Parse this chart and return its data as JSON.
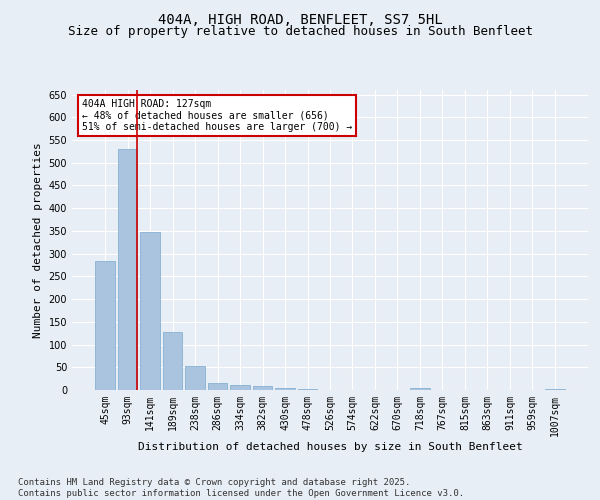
{
  "title_line1": "404A, HIGH ROAD, BENFLEET, SS7 5HL",
  "title_line2": "Size of property relative to detached houses in South Benfleet",
  "xlabel": "Distribution of detached houses by size in South Benfleet",
  "ylabel": "Number of detached properties",
  "categories": [
    "45sqm",
    "93sqm",
    "141sqm",
    "189sqm",
    "238sqm",
    "286sqm",
    "334sqm",
    "382sqm",
    "430sqm",
    "478sqm",
    "526sqm",
    "574sqm",
    "622sqm",
    "670sqm",
    "718sqm",
    "767sqm",
    "815sqm",
    "863sqm",
    "911sqm",
    "959sqm",
    "1007sqm"
  ],
  "values": [
    283,
    530,
    348,
    127,
    52,
    15,
    10,
    8,
    5,
    3,
    0,
    0,
    0,
    0,
    5,
    0,
    0,
    0,
    0,
    0,
    3
  ],
  "bar_color": "#aac4e0",
  "bar_edgecolor": "#7aaad0",
  "vline_color": "#cc0000",
  "vline_x_index": 1.425,
  "annotation_text": "404A HIGH ROAD: 127sqm\n← 48% of detached houses are smaller (656)\n51% of semi-detached houses are larger (700) →",
  "annotation_box_edgecolor": "#cc0000",
  "annotation_box_facecolor": "#ffffff",
  "ylim": [
    0,
    660
  ],
  "yticks": [
    0,
    50,
    100,
    150,
    200,
    250,
    300,
    350,
    400,
    450,
    500,
    550,
    600,
    650
  ],
  "footer_line1": "Contains HM Land Registry data © Crown copyright and database right 2025.",
  "footer_line2": "Contains public sector information licensed under the Open Government Licence v3.0.",
  "bg_color": "#e8eef5",
  "plot_bg_color": "#e8eef5",
  "grid_color": "#ffffff",
  "title_fontsize": 10,
  "subtitle_fontsize": 9,
  "axis_label_fontsize": 8,
  "tick_fontsize": 7,
  "annotation_fontsize": 7,
  "footer_fontsize": 6.5
}
